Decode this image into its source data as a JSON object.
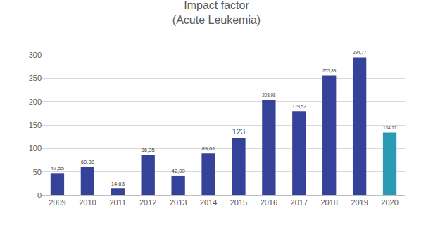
{
  "chart_data": {
    "type": "bar",
    "title": "Impact factor",
    "subtitle": "(Acute Leukemia)",
    "categories": [
      "2009",
      "2010",
      "2011",
      "2012",
      "2013",
      "2014",
      "2015",
      "2016",
      "2017",
      "2018",
      "2019",
      "2020"
    ],
    "values": [
      47.55,
      60.38,
      14.63,
      86.35,
      42.09,
      89.61,
      123,
      203.98,
      179.52,
      255.89,
      294.77,
      134.17
    ],
    "value_labels": [
      "47,55",
      "60,38",
      "14,63",
      "86,35",
      "42,09",
      "89,61",
      "123",
      "203,98",
      "179,52",
      "255,89",
      "294,77",
      "134,17"
    ],
    "colors": [
      "#34429a",
      "#34429a",
      "#34429a",
      "#34429a",
      "#34429a",
      "#34429a",
      "#34429a",
      "#34429a",
      "#34429a",
      "#34429a",
      "#34429a",
      "#2b9ab3"
    ],
    "ylim": [
      0,
      300
    ],
    "yticks": [
      0,
      50,
      100,
      150,
      200,
      250,
      300
    ],
    "grid": true,
    "data_labels": true
  }
}
